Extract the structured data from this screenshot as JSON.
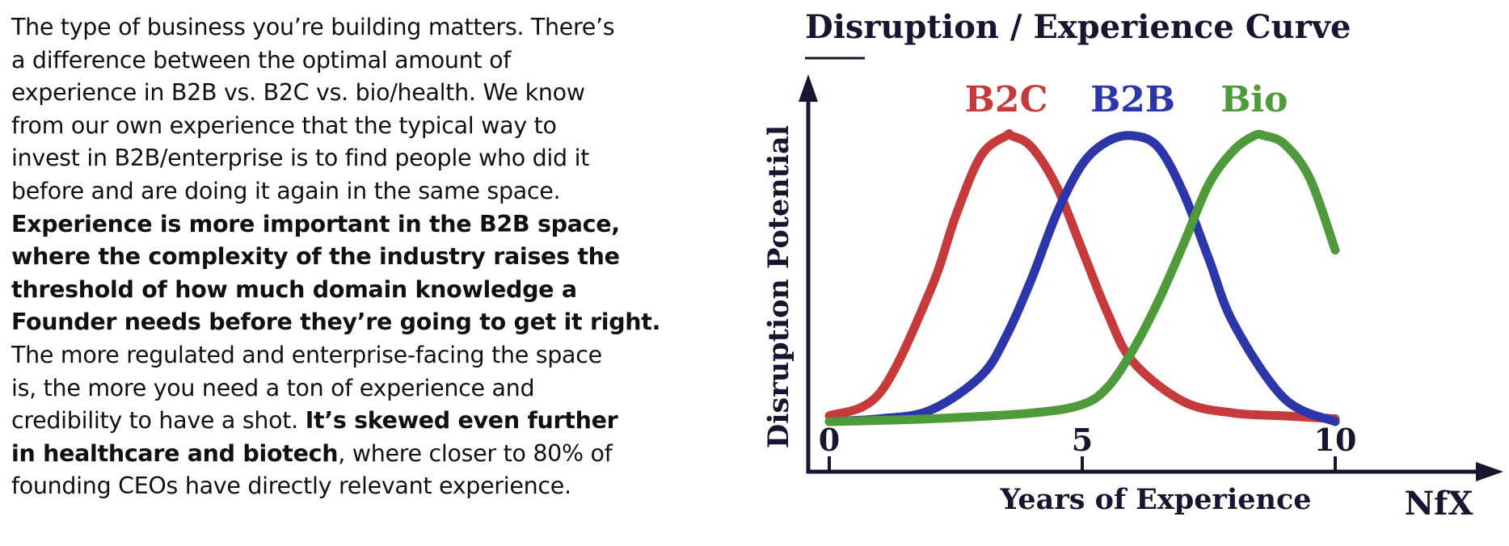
{
  "paragraph": {
    "lines": [
      [
        {
          "t": "The type of business you’re building matters. There’s"
        }
      ],
      [
        {
          "t": "a difference between the optimal amount of"
        }
      ],
      [
        {
          "t": "experience in B2B vs. B2C vs. bio/health. We know"
        }
      ],
      [
        {
          "t": "from our own experience that the typical way to"
        }
      ],
      [
        {
          "t": "invest in B2B/enterprise is to find people who did it"
        }
      ],
      [
        {
          "t": "before and are doing it again in the same space."
        }
      ],
      [
        {
          "t": "Experience is more important in the B2B space,",
          "b": true
        }
      ],
      [
        {
          "t": "where the complexity of the industry raises the",
          "b": true
        }
      ],
      [
        {
          "t": "threshold of how much domain knowledge a",
          "b": true
        }
      ],
      [
        {
          "t": "Founder needs before they’re going to get it right.",
          "b": true
        }
      ],
      [
        {
          "t": "The more regulated and enterprise-facing the space"
        }
      ],
      [
        {
          "t": "is, the more you need a ton of experience and"
        }
      ],
      [
        {
          "t": "credibility to have a shot. "
        },
        {
          "t": "It’s skewed even further",
          "b": true
        }
      ],
      [
        {
          "t": "in healthcare and biotech",
          "b": true
        },
        {
          "t": ", where closer to 80% of"
        }
      ],
      [
        {
          "t": "founding CEOs have directly relevant experience."
        }
      ]
    ]
  },
  "logo": {
    "text": "NfX"
  },
  "chart_data": {
    "type": "line",
    "title": "Disruption / Experience Curve",
    "xlabel": "Years of Experience",
    "ylabel": "Disruption Potential",
    "xlim": [
      0,
      10
    ],
    "ylim": [
      0,
      1.05
    ],
    "x_ticks": [
      "0",
      "5",
      "10"
    ],
    "series": [
      {
        "name": "B2C",
        "color": "#c63a3c",
        "x": [
          0,
          1,
          2,
          2.5,
          3,
          3.5,
          3.6,
          4,
          4.5,
          5,
          5.5,
          6,
          7,
          8,
          9,
          10
        ],
        "y": [
          0.02,
          0.1,
          0.46,
          0.72,
          0.93,
          1.0,
          1.0,
          0.96,
          0.82,
          0.6,
          0.38,
          0.21,
          0.07,
          0.03,
          0.02,
          0.01
        ]
      },
      {
        "name": "B2B",
        "color": "#2d36a8",
        "x": [
          0,
          1,
          2,
          3,
          3.5,
          4,
          4.5,
          5,
          5.5,
          6,
          6.5,
          7,
          7.5,
          8,
          9,
          10
        ],
        "y": [
          0.0,
          0.01,
          0.04,
          0.16,
          0.3,
          0.5,
          0.73,
          0.9,
          0.98,
          1.0,
          0.96,
          0.8,
          0.57,
          0.34,
          0.08,
          0.0
        ]
      },
      {
        "name": "Bio",
        "color": "#4f9a3b",
        "x": [
          0,
          2,
          4,
          5,
          5.5,
          6,
          6.5,
          7,
          7.5,
          8,
          8.4,
          8.6,
          9,
          9.5,
          10
        ],
        "y": [
          0.0,
          0.01,
          0.03,
          0.06,
          0.12,
          0.25,
          0.42,
          0.62,
          0.83,
          0.95,
          1.0,
          1.0,
          0.97,
          0.85,
          0.6
        ]
      }
    ]
  }
}
